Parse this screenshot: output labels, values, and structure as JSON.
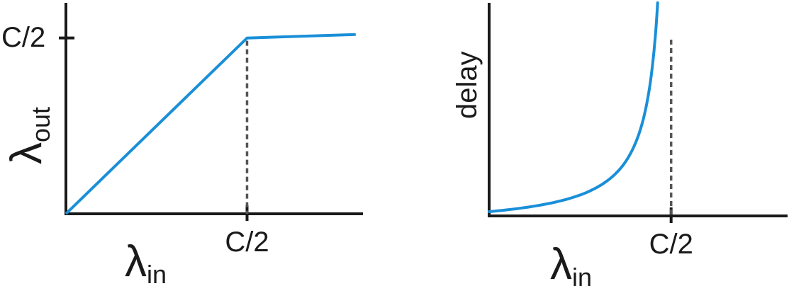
{
  "colors": {
    "curve": "#1a8fd8",
    "axis": "#1a1a1a",
    "guide": "#555555"
  },
  "chart_data": [
    {
      "type": "line",
      "title": "",
      "xlabel_symbol": "λ",
      "xlabel_sub": "in",
      "ylabel_symbol": "λ",
      "ylabel_sub": "out",
      "xtick_label": "C/2",
      "ytick_label": "C/2",
      "xlim": [
        0,
        0.82
      ],
      "ylim": [
        0,
        0.6
      ],
      "x": [
        0,
        0.5,
        0.8
      ],
      "y": [
        0,
        0.5,
        0.51
      ],
      "guide_x": 0.5,
      "grid": false,
      "legend": "none"
    },
    {
      "type": "line",
      "title": "",
      "xlabel_symbol": "λ",
      "xlabel_sub": "in",
      "ylabel": "delay",
      "xtick_label": "C/2",
      "xlim": [
        0,
        0.82
      ],
      "ylim": [
        0,
        1
      ],
      "curve_asymptote_x": 0.5,
      "curve_x_end": 0.463,
      "curve_y_start": 0.02,
      "guide_x": 0.5,
      "grid": false,
      "legend": "none"
    }
  ]
}
